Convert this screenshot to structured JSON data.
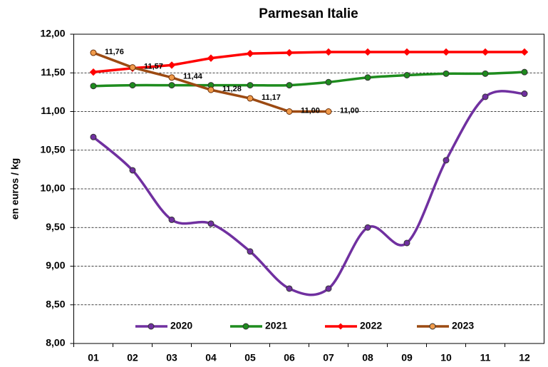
{
  "chart_data": {
    "type": "line",
    "title": "Parmesan Italie",
    "y_label": "en euros / kg",
    "categories": [
      "01",
      "02",
      "03",
      "04",
      "05",
      "06",
      "07",
      "08",
      "09",
      "10",
      "11",
      "12"
    ],
    "ylim": [
      8,
      12
    ],
    "yticks": [
      {
        "value": 8,
        "label": "8,00"
      },
      {
        "value": 8.5,
        "label": "8,50"
      },
      {
        "value": 9,
        "label": "9,00"
      },
      {
        "value": 9.5,
        "label": "9,50"
      },
      {
        "value": 10,
        "label": "10,00"
      },
      {
        "value": 10.5,
        "label": "10,50"
      },
      {
        "value": 11,
        "label": "11,00"
      },
      {
        "value": 11.5,
        "label": "11,50"
      },
      {
        "value": 12,
        "label": "12,00"
      }
    ],
    "grid": true,
    "series": [
      {
        "name": "2020",
        "color": "#7030a0",
        "marker": "circle",
        "smooth": true,
        "values": [
          10.67,
          10.24,
          9.6,
          9.55,
          9.19,
          8.71,
          8.71,
          9.5,
          9.3,
          10.37,
          11.19,
          11.23
        ]
      },
      {
        "name": "2021",
        "color": "#1e8c1e",
        "marker": "circle",
        "smooth": true,
        "values": [
          11.33,
          11.34,
          11.34,
          11.34,
          11.34,
          11.34,
          11.38,
          11.44,
          11.47,
          11.49,
          11.49,
          11.51
        ]
      },
      {
        "name": "2022",
        "color": "#ff0000",
        "marker": "diamond",
        "smooth": false,
        "values": [
          11.51,
          11.56,
          11.6,
          11.69,
          11.75,
          11.76,
          11.77,
          11.77,
          11.77,
          11.77,
          11.77,
          11.77
        ]
      },
      {
        "name": "2023",
        "color": "#9c4a12",
        "marker": "circle",
        "smooth": false,
        "values": [
          11.76,
          11.57,
          11.44,
          11.28,
          11.17,
          11.0,
          11.0,
          null,
          null,
          null,
          null,
          null
        ],
        "value_labels": [
          "11,76",
          "11,57",
          "11,44",
          "11,28",
          "11,17",
          "11,00",
          "11,00",
          null,
          null,
          null,
          null,
          null
        ]
      }
    ]
  }
}
